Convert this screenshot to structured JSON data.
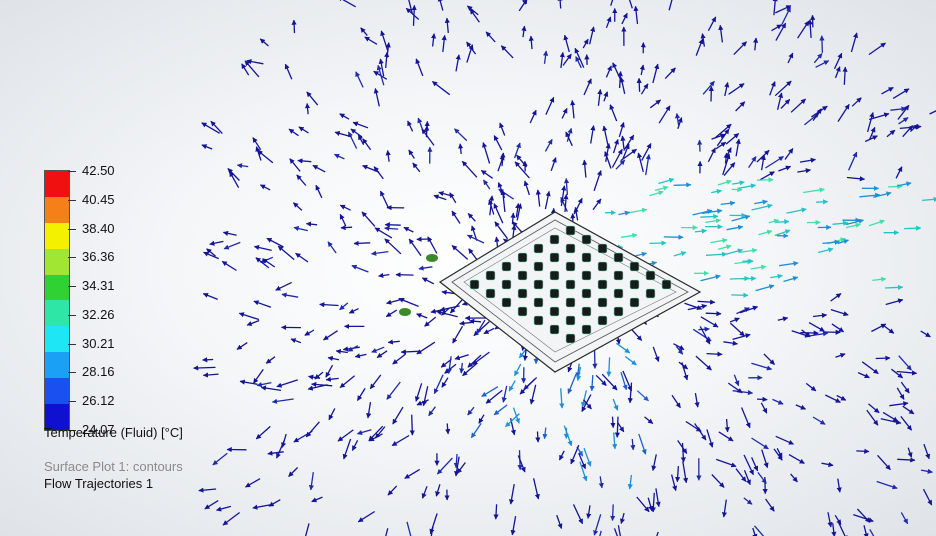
{
  "legend": {
    "title": "Temperature (Fluid) [°C]",
    "ticks": [
      "42.50",
      "40.45",
      "38.40",
      "36.36",
      "34.31",
      "32.26",
      "30.21",
      "28.16",
      "26.12",
      "24.07"
    ],
    "colors": [
      "#f01010",
      "#f5801a",
      "#f3f000",
      "#a0e632",
      "#2fd232",
      "#2ee6a5",
      "#1ee6f5",
      "#1aa0f5",
      "#1a50f0",
      "#1010d0"
    ]
  },
  "plots": {
    "surface": "Surface Plot 1: contours",
    "flow": "Flow Trajectories 1"
  },
  "scene": {
    "arrow_colors": [
      "#141496",
      "#1e2aa8",
      "#1c5fcf",
      "#1b8fd8",
      "#22c3c9",
      "#3fe0a8"
    ],
    "component_color": "#1a1a1a"
  }
}
